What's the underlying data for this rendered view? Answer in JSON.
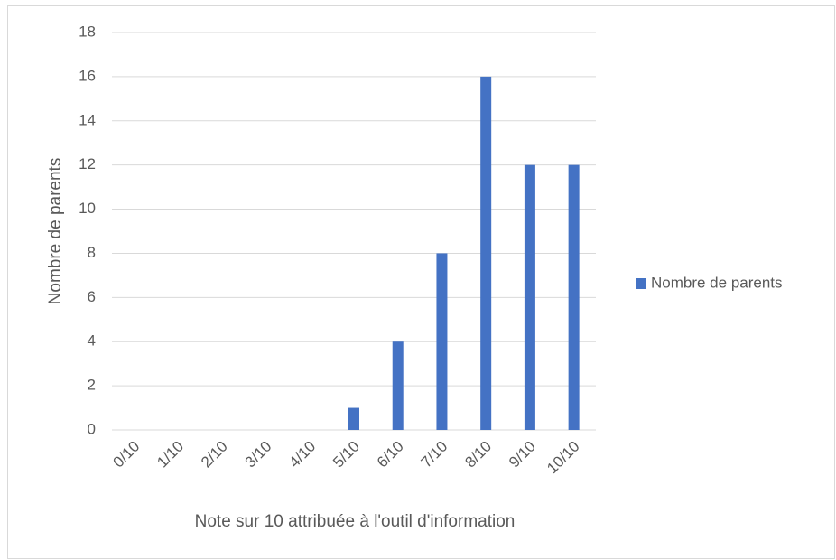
{
  "chart_data": {
    "type": "bar",
    "categories": [
      "0/10",
      "1/10",
      "2/10",
      "3/10",
      "4/10",
      "5/10",
      "6/10",
      "7/10",
      "8/10",
      "9/10",
      "10/10"
    ],
    "series": [
      {
        "name": "Nombre de parents",
        "color": "#4472c4",
        "values": [
          0,
          0,
          0,
          0,
          0,
          1,
          4,
          8,
          16,
          12,
          12
        ]
      }
    ],
    "x_label": "Note sur 10 attribuée à l'outil d'information",
    "y_label": "Nombre de parents",
    "ylim": [
      0,
      18
    ],
    "yticks": [
      0,
      2,
      4,
      6,
      8,
      10,
      12,
      14,
      16,
      18
    ],
    "grid": true,
    "legend": "right"
  }
}
